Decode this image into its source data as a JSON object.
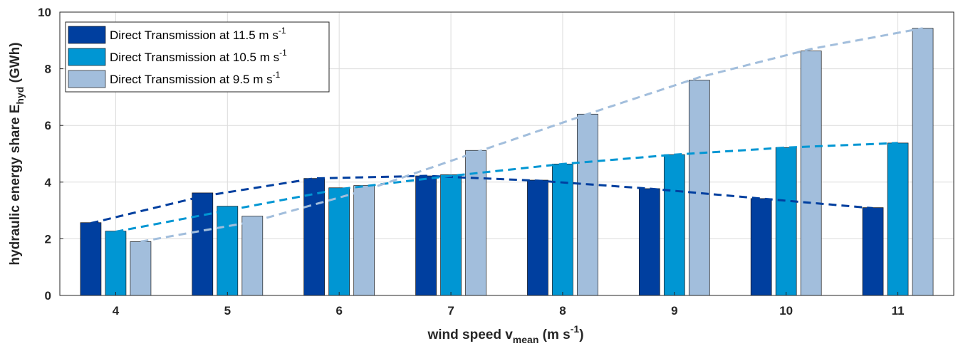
{
  "chart_data": {
    "type": "bar",
    "categories": [
      "4",
      "5",
      "6",
      "7",
      "8",
      "9",
      "10",
      "11"
    ],
    "series": [
      {
        "name": "Direct Transmission at 11.5 m s-1",
        "color": "#003F9F",
        "values": [
          2.57,
          3.62,
          4.13,
          4.22,
          4.07,
          3.77,
          3.42,
          3.1
        ]
      },
      {
        "name": "Direct Transmission at 10.5 m s-1",
        "color": "#0096D3",
        "values": [
          2.27,
          3.15,
          3.8,
          4.26,
          4.64,
          4.97,
          5.22,
          5.38
        ]
      },
      {
        "name": "Direct Transmission at 9.5 m s-1",
        "color": "#A2BEDC",
        "values": [
          1.9,
          2.8,
          3.88,
          5.12,
          6.4,
          7.6,
          8.63,
          9.43
        ]
      }
    ],
    "trend_lines": [
      {
        "series": "Direct Transmission at 11.5 m s-1",
        "style": "dashed",
        "values": [
          2.55,
          3.5,
          4.13,
          4.22,
          4.05,
          3.77,
          3.42,
          3.08
        ]
      },
      {
        "series": "Direct Transmission at 10.5 m s-1",
        "style": "dashed",
        "values": [
          2.25,
          3.0,
          3.75,
          4.22,
          4.64,
          4.97,
          5.22,
          5.38
        ]
      },
      {
        "series": "Direct Transmission at 9.5 m s-1",
        "style": "dashed",
        "values": [
          1.9,
          2.6,
          3.7,
          5.05,
          6.4,
          7.7,
          8.7,
          9.43
        ]
      }
    ],
    "xlabel": {
      "main": "wind speed v",
      "sub": "mean",
      "unit": " (m s",
      "exp": "-1",
      "close": ")"
    },
    "ylabel": {
      "main": "hydraulic energy share E",
      "sub": "hyd",
      "unit": " (GWh)"
    },
    "yticks": [
      "0",
      "2",
      "4",
      "6",
      "8",
      "10"
    ],
    "ylim": [
      0,
      10
    ],
    "grid": true,
    "legend_position": "top-left",
    "legend": [
      {
        "prefix": "Direct Transmission at 11.5 m s",
        "exp": "-1"
      },
      {
        "prefix": "Direct Transmission at 10.5 m s",
        "exp": "-1"
      },
      {
        "prefix": "Direct Transmission at 9.5 m s",
        "exp": "-1"
      }
    ]
  }
}
